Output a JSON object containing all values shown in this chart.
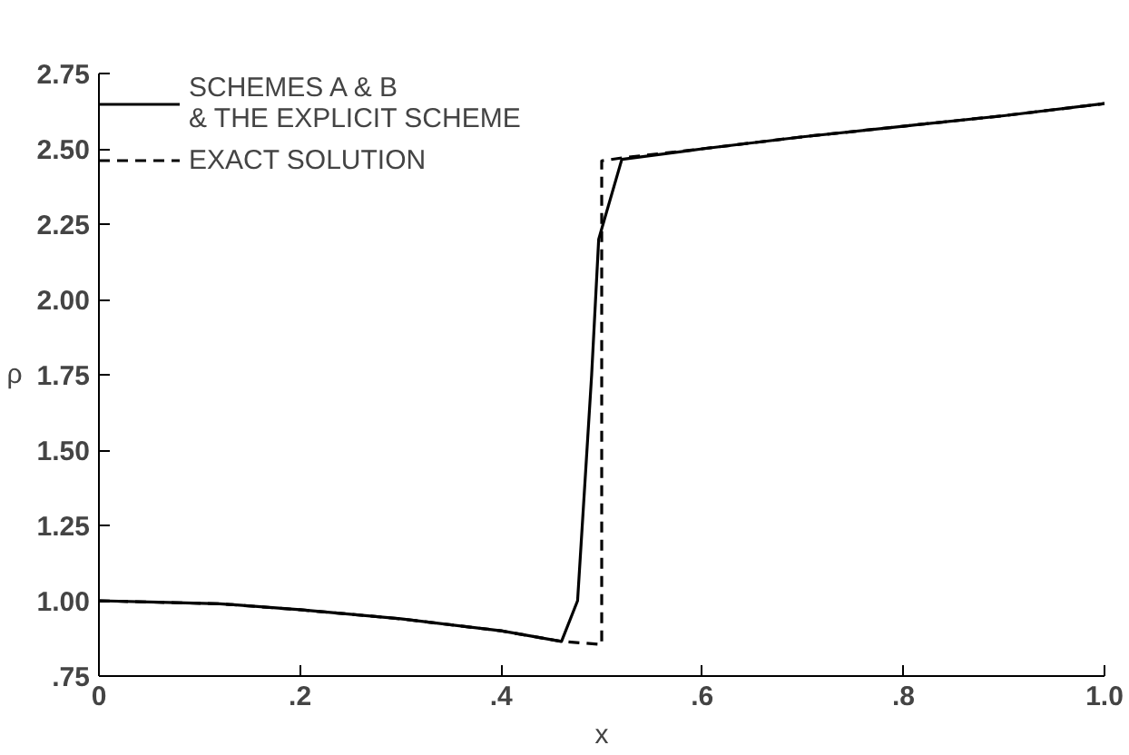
{
  "chart_data": {
    "type": "line",
    "xlabel": "x",
    "ylabel": "ρ",
    "series": [
      {
        "name": "SCHEMES A & B\n& THE EXPLICIT SCHEME",
        "color": "#000000",
        "line_style": "solid",
        "x": [
          0,
          0.06,
          0.12,
          0.2,
          0.3,
          0.4,
          0.46,
          0.476,
          0.49,
          0.497,
          0.52,
          0.6,
          0.7,
          0.8,
          0.9,
          1.0
        ],
        "values": [
          1.0,
          0.995,
          0.99,
          0.97,
          0.94,
          0.9,
          0.865,
          1.0,
          1.75,
          2.2,
          2.465,
          2.5,
          2.54,
          2.575,
          2.61,
          2.65
        ]
      },
      {
        "name": "EXACT SOLUTION",
        "color": "#000000",
        "line_style": "dashed",
        "x": [
          0,
          0.06,
          0.12,
          0.2,
          0.3,
          0.4,
          0.46,
          0.5,
          0.5,
          0.52,
          0.6,
          0.7,
          0.8,
          0.9,
          1.0
        ],
        "values": [
          1.0,
          0.995,
          0.99,
          0.97,
          0.94,
          0.9,
          0.865,
          0.855,
          2.46,
          2.47,
          2.5,
          2.54,
          2.575,
          2.61,
          2.65
        ]
      }
    ],
    "xlim": [
      0,
      1.0
    ],
    "ylim": [
      0.75,
      2.75
    ],
    "xticks": [
      {
        "value": 0,
        "label": "0"
      },
      {
        "value": 0.2,
        "label": ".2"
      },
      {
        "value": 0.4,
        "label": ".4"
      },
      {
        "value": 0.6,
        "label": ".6"
      },
      {
        "value": 0.8,
        "label": ".8"
      },
      {
        "value": 1.0,
        "label": "1.0"
      }
    ],
    "yticks": [
      {
        "value": 0.75,
        "label": ".75"
      },
      {
        "value": 1.0,
        "label": "1.00"
      },
      {
        "value": 1.25,
        "label": "1.25"
      },
      {
        "value": 1.5,
        "label": "1.50"
      },
      {
        "value": 1.75,
        "label": "1.75"
      },
      {
        "value": 2.0,
        "label": "2.00"
      },
      {
        "value": 2.25,
        "label": "2.25"
      },
      {
        "value": 2.5,
        "label": "2.50"
      },
      {
        "value": 2.75,
        "label": "2.75"
      }
    ],
    "grid": false,
    "legend": "top left"
  }
}
